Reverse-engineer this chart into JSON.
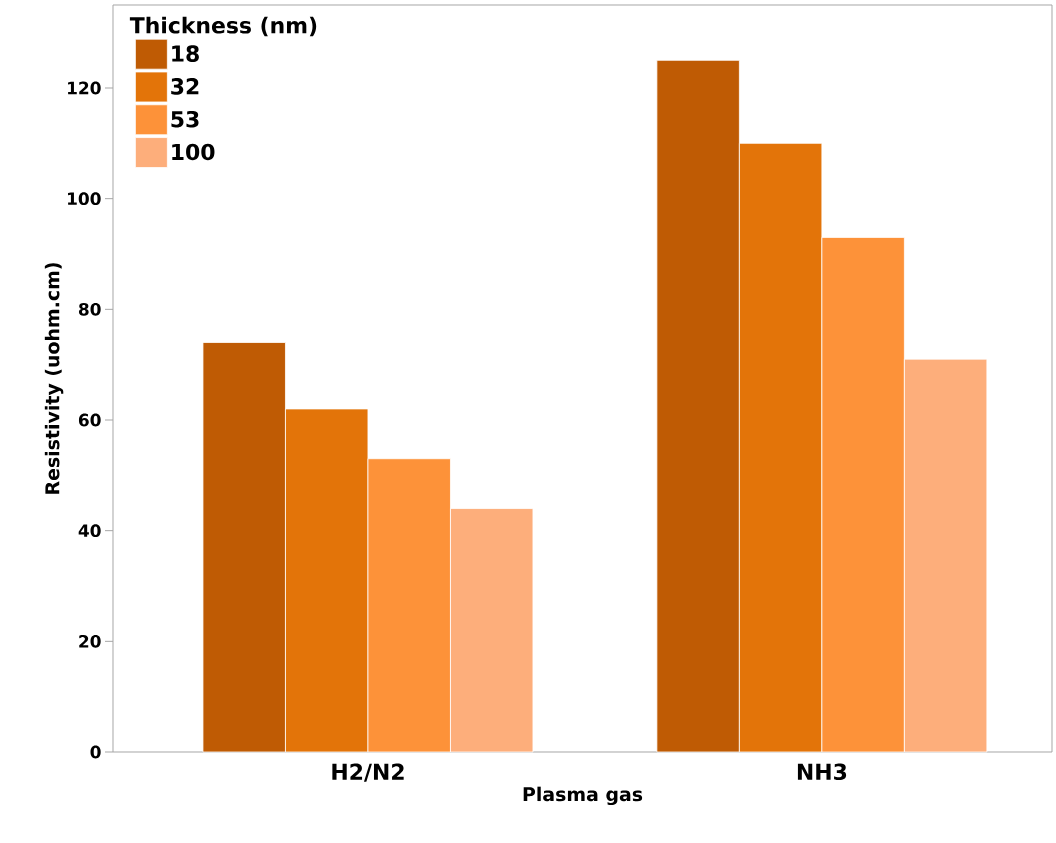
{
  "chart_data": {
    "type": "bar",
    "xlabel": "Plasma gas",
    "ylabel": "Resistivity (uohm.cm)",
    "legend_title": "Thickness (nm)",
    "categories": [
      "H2/N2",
      "NH3"
    ],
    "series": [
      {
        "name": "18",
        "color": "#bf5b04",
        "values": [
          74,
          125
        ]
      },
      {
        "name": "32",
        "color": "#e37409",
        "values": [
          62,
          110
        ]
      },
      {
        "name": "53",
        "color": "#fd9239",
        "values": [
          53,
          93
        ]
      },
      {
        "name": "100",
        "color": "#fdae7b",
        "values": [
          44,
          71
        ]
      }
    ],
    "ylim": [
      0,
      135
    ],
    "yticks": [
      0,
      20,
      40,
      60,
      80,
      100,
      120
    ],
    "grid": false,
    "legend": "top left"
  }
}
